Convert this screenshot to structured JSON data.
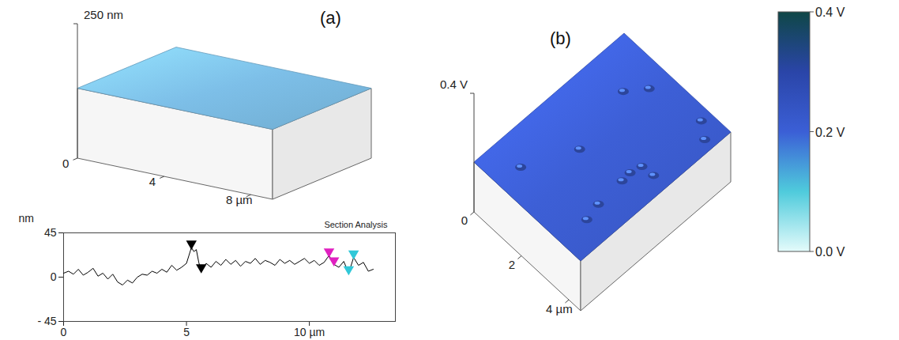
{
  "chart_data": [
    {
      "type": "surface",
      "title": "(a)",
      "xlim": [
        0,
        9
      ],
      "xticks": [
        0,
        4,
        {
          "value": 8,
          "label": "8 µm"
        }
      ],
      "zlim": [
        0,
        250
      ],
      "zticks": [
        {
          "value": 250,
          "label": "250 nm"
        }
      ],
      "color": "#7dbfe8"
    },
    {
      "type": "line",
      "title": "Section Analysis",
      "ylabel": "nm",
      "x": [
        0,
        0.2,
        0.4,
        0.6,
        0.8,
        1.0,
        1.2,
        1.4,
        1.6,
        1.8,
        2.0,
        2.2,
        2.4,
        2.6,
        2.8,
        3.0,
        3.2,
        3.4,
        3.6,
        3.8,
        4.0,
        4.2,
        4.4,
        4.6,
        4.8,
        5.0,
        5.1,
        5.2,
        5.3,
        5.4,
        5.5,
        5.6,
        5.8,
        6.0,
        6.2,
        6.4,
        6.6,
        6.8,
        7.0,
        7.2,
        7.4,
        7.6,
        7.8,
        8.0,
        8.2,
        8.4,
        8.6,
        8.8,
        9.0,
        9.2,
        9.4,
        9.6,
        9.8,
        10.0,
        10.2,
        10.4,
        10.6,
        10.8,
        11.0,
        11.2,
        11.4,
        11.6,
        11.8,
        12.0,
        12.2,
        12.4,
        12.6
      ],
      "values": [
        4,
        6,
        3,
        8,
        2,
        5,
        9,
        1,
        4,
        -2,
        3,
        -5,
        -8,
        -3,
        -6,
        0,
        3,
        2,
        6,
        4,
        8,
        5,
        12,
        7,
        10,
        14,
        22,
        30,
        26,
        28,
        15,
        6,
        14,
        10,
        16,
        12,
        18,
        13,
        17,
        11,
        16,
        14,
        19,
        13,
        17,
        15,
        12,
        18,
        14,
        17,
        13,
        16,
        19,
        14,
        17,
        12,
        15,
        22,
        13,
        10,
        16,
        4,
        20,
        12,
        15,
        6,
        8
      ],
      "color": "#000000",
      "markers": [
        {
          "x": 5.2,
          "y": 30,
          "color": "#000000"
        },
        {
          "x": 5.6,
          "y": 6,
          "color": "#000000"
        },
        {
          "x": 10.8,
          "y": 22,
          "color": "#e020c0"
        },
        {
          "x": 11.0,
          "y": 13,
          "color": "#e020c0"
        },
        {
          "x": 11.6,
          "y": 4,
          "color": "#30c8d8"
        },
        {
          "x": 11.8,
          "y": 20,
          "color": "#30c8d8"
        }
      ],
      "xlim": [
        0,
        13.5
      ],
      "xticks": [
        0,
        5,
        {
          "value": 10,
          "label": "10 µm"
        }
      ],
      "ylim": [
        -45,
        45
      ],
      "yticks": [
        {
          "value": -45,
          "label": "- 45"
        },
        0,
        45
      ]
    },
    {
      "type": "surface",
      "title": "(b)",
      "xlim": [
        0,
        4.5
      ],
      "xticks": [
        0,
        2,
        {
          "value": 4,
          "label": "4 µm"
        }
      ],
      "ylim": [
        0,
        4.5
      ],
      "zlim": [
        0,
        0.4
      ],
      "zticks": [
        {
          "value": 0.4,
          "label": "0.4 V"
        }
      ],
      "color": "#3d5fd6",
      "features": [
        {
          "x": 1.07,
          "y": 0.64
        },
        {
          "x": 1.84,
          "y": 1.86
        },
        {
          "x": 1.36,
          "y": 3.51
        },
        {
          "x": 1.82,
          "y": 3.96
        },
        {
          "x": 3.64,
          "y": 4.23
        },
        {
          "x": 4.15,
          "y": 3.97
        },
        {
          "x": 3.42,
          "y": 2.25
        },
        {
          "x": 3.51,
          "y": 2.54
        },
        {
          "x": 3.45,
          "y": 1.99
        },
        {
          "x": 3.96,
          "y": 2.57
        },
        {
          "x": 3.52,
          "y": 1.23
        },
        {
          "x": 3.65,
          "y": 0.79
        }
      ],
      "colorbar": {
        "range": [
          0,
          0.4
        ],
        "ticks": [
          {
            "value": 0,
            "label": "0.0 V"
          },
          {
            "value": 0.2,
            "label": "0.2 V"
          },
          {
            "value": 0.4,
            "label": "0.4 V"
          }
        ],
        "colors": [
          "#e4fbfb",
          "#4fcbdc",
          "#3b5fd6",
          "#2a45a8",
          "#0f4747"
        ]
      }
    }
  ]
}
